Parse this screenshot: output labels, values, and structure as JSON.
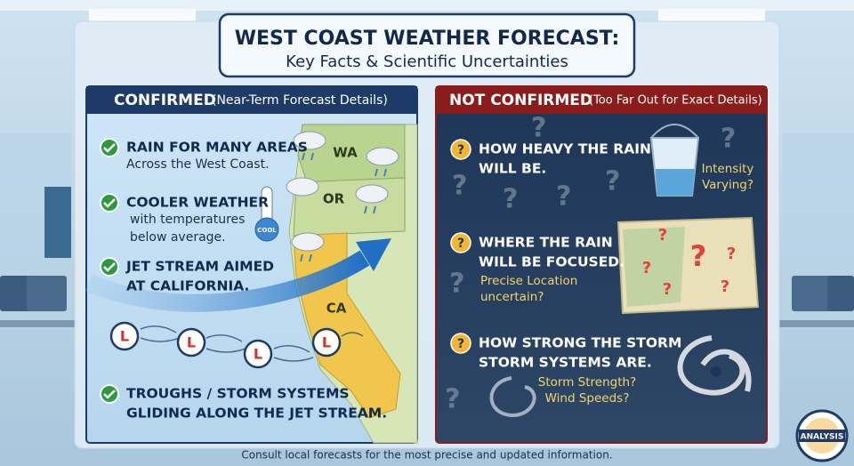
{
  "header": {
    "title": "WEST COAST WEATHER FORECAST:",
    "subtitle": "Key Facts & Scientific Uncertainties"
  },
  "confirmed": {
    "heading": "CONFIRMED",
    "subheading": "(Near-Term Forecast Details)",
    "items": [
      {
        "title": [
          "RAIN FOR MANY AREAS"
        ],
        "detail": [
          "Across the West Coast."
        ]
      },
      {
        "title": [
          "COOLER WEATHER"
        ],
        "detail": [
          "with temperatures",
          "below average."
        ]
      },
      {
        "title": [
          "JET STREAM AIMED",
          "AT CALIFORNIA."
        ],
        "detail": []
      },
      {
        "title": [
          "TROUGHS / STORM SYSTEMS",
          "GLIDING ALONG THE JET STREAM."
        ],
        "detail": []
      }
    ],
    "map_labels": [
      "WA",
      "OR",
      "CA"
    ],
    "thermometer_label": "COOL",
    "low_marker": "L"
  },
  "not_confirmed": {
    "heading": "NOT CONFIRMED",
    "subheading": "(Too Far Out for Exact Details)",
    "items": [
      {
        "title": [
          "HOW HEAVY THE RAIN",
          "WILL BE."
        ],
        "note": [
          "Intensity",
          "Varying?"
        ]
      },
      {
        "title": [
          "WHERE THE RAIN",
          "WILL BE FOCUSED."
        ],
        "note": [
          "Precise Location",
          "uncertain?"
        ]
      },
      {
        "title": [
          "HOW STRONG THE STORM",
          "STORM SYSTEMS ARE."
        ],
        "note": [
          "Storm Strength?",
          "Wind Speeds?"
        ]
      }
    ]
  },
  "footer": "Consult local forecasts for the most precise and updated information.",
  "badge": "ANALYSIS"
}
